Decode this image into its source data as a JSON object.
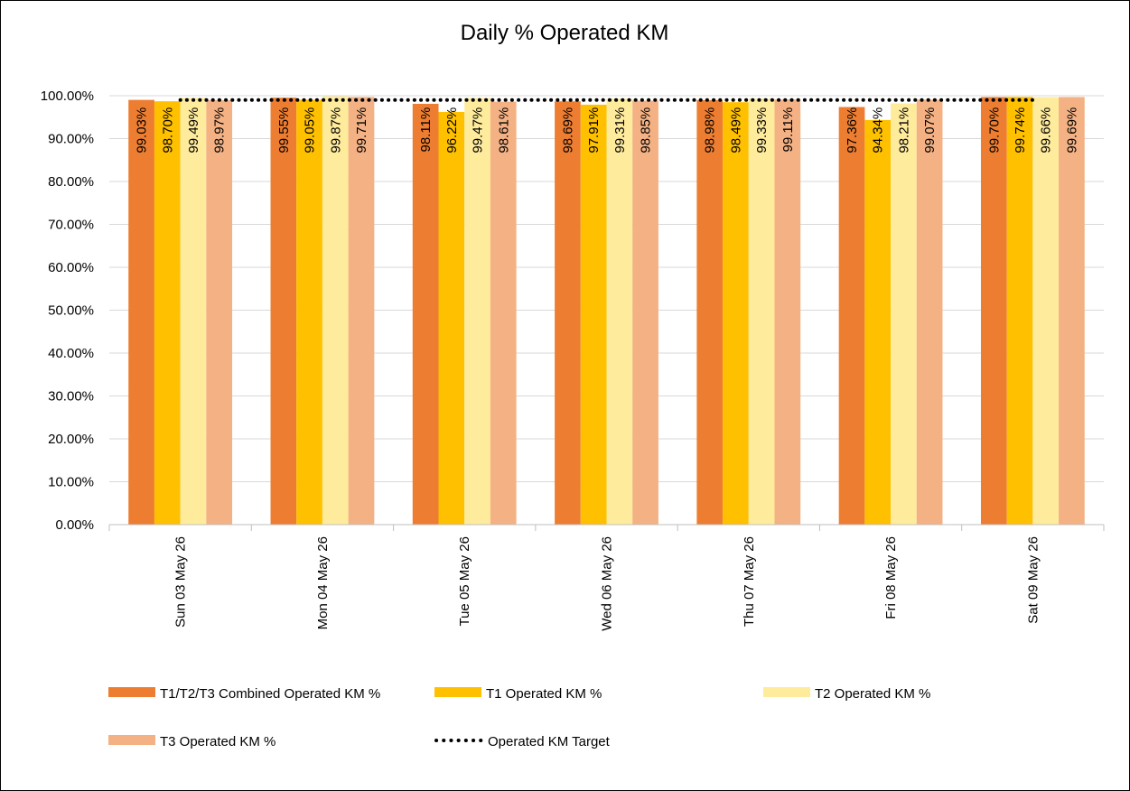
{
  "chart_data": {
    "type": "bar",
    "title": "Daily % Operated KM",
    "categories": [
      "Sun 03 May 26",
      "Mon 04 May 26",
      "Tue 05 May 26",
      "Wed 06 May 26",
      "Thu 07 May 26",
      "Fri 08 May 26",
      "Sat 09 May 26"
    ],
    "series": [
      {
        "name": "T1/T2/T3 Combined Operated KM %",
        "color": "#ED7D31",
        "values": [
          99.03,
          99.55,
          98.11,
          98.69,
          98.98,
          97.36,
          99.7
        ],
        "labels": [
          "99.03%",
          "99.55%",
          "98.11%",
          "98.69%",
          "98.98%",
          "97.36%",
          "99.70%"
        ]
      },
      {
        "name": "T1 Operated KM %",
        "color": "#FFC000",
        "values": [
          98.7,
          99.05,
          96.22,
          97.91,
          98.49,
          94.34,
          99.74
        ],
        "labels": [
          "98.70%",
          "99.05%",
          "96.22%",
          "97.91%",
          "98.49%",
          "94.34%",
          "99.74%"
        ]
      },
      {
        "name": "T2 Operated KM %",
        "color": "#FFEB9C",
        "values": [
          99.49,
          99.87,
          99.47,
          99.31,
          99.33,
          98.21,
          99.66
        ],
        "labels": [
          "99.49%",
          "99.87%",
          "99.47%",
          "99.31%",
          "99.33%",
          "98.21%",
          "99.66%"
        ]
      },
      {
        "name": "T3 Operated KM %",
        "color": "#F4B183",
        "values": [
          98.97,
          99.71,
          98.61,
          98.85,
          99.11,
          99.07,
          99.69
        ],
        "labels": [
          "98.97%",
          "99.71%",
          "98.61%",
          "98.85%",
          "99.11%",
          "99.07%",
          "99.69%"
        ]
      }
    ],
    "target": {
      "name": "Operated KM Target",
      "value": 99.0,
      "color": "#000000",
      "style": "dotted"
    },
    "ylim": [
      0,
      100
    ],
    "yticks": [
      0,
      10,
      20,
      30,
      40,
      50,
      60,
      70,
      80,
      90,
      100
    ],
    "ytick_labels": [
      "0.00%",
      "10.00%",
      "20.00%",
      "30.00%",
      "40.00%",
      "50.00%",
      "60.00%",
      "70.00%",
      "80.00%",
      "90.00%",
      "100.00%"
    ],
    "grid": true,
    "legend_position": "bottom"
  }
}
